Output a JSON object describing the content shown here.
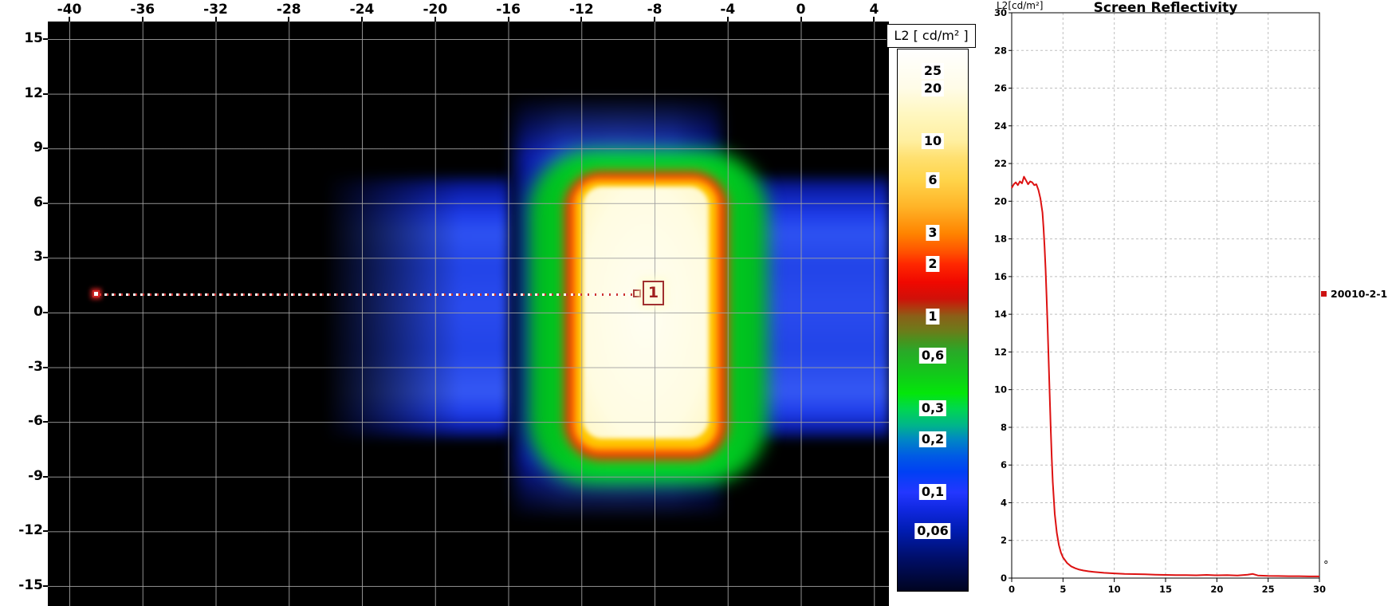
{
  "chart_data": [
    {
      "type": "heatmap",
      "name": "luminance-false-color-map",
      "x_ticks": [
        -40,
        -36,
        -32,
        -28,
        -24,
        -20,
        -16,
        -12,
        -8,
        -4,
        0,
        4
      ],
      "y_ticks": [
        15,
        12,
        9,
        6,
        3,
        0,
        -3,
        -6,
        -9,
        -12,
        -15
      ],
      "xlim": [
        -41.2,
        4.8
      ],
      "ylim": [
        -16,
        16
      ],
      "colorbar": {
        "title": "L2 [ cd/m² ]",
        "scale": "log",
        "tick_labels": [
          "25",
          "20",
          "10",
          "6",
          "3",
          "2",
          "1",
          "0,6",
          "0,3",
          "0,2",
          "0,1",
          "0,06"
        ],
        "tick_values": [
          25,
          20,
          10,
          6,
          3,
          2,
          1,
          0.6,
          0.3,
          0.2,
          0.1,
          0.06
        ]
      },
      "bright_region": {
        "x_range": [
          -13,
          -5.5
        ],
        "y_range": [
          -7.2,
          7.2
        ],
        "peak_value_cdm2": 25
      },
      "glow_bands": {
        "horizontal_band_y": [
          -6.8,
          7.2
        ],
        "vertical_band_x": [
          -15,
          -3
        ],
        "level_cdm2": 0.1
      },
      "background_level_cdm2": 0.06,
      "marker": {
        "label": "1",
        "x": -9,
        "y": 1,
        "line_start_x": -38.5
      }
    },
    {
      "type": "line",
      "title": "Screen Reflectivity",
      "y_axis_label": "L2[cd/m²]",
      "x_unit": "°",
      "legend": "20010-2-1",
      "color": "#dd1111",
      "xlim": [
        0,
        30
      ],
      "ylim": [
        0,
        30
      ],
      "x_ticks": [
        0,
        5,
        10,
        15,
        20,
        25,
        30
      ],
      "y_tick_step": 2,
      "grid": "dashed",
      "x": [
        0,
        0.2,
        0.4,
        0.6,
        0.8,
        1.0,
        1.2,
        1.4,
        1.6,
        1.8,
        2.0,
        2.2,
        2.4,
        2.6,
        2.8,
        3.0,
        3.1,
        3.2,
        3.3,
        3.4,
        3.5,
        3.6,
        3.7,
        3.8,
        3.9,
        4.0,
        4.2,
        4.4,
        4.6,
        4.8,
        5.0,
        5.4,
        5.8,
        6.2,
        6.6,
        7.0,
        7.5,
        8.0,
        9.0,
        10,
        11,
        12,
        13,
        14,
        15,
        16,
        17,
        18,
        19,
        20,
        21,
        22,
        23,
        23.5,
        24,
        25,
        26,
        27,
        28,
        29,
        30
      ],
      "y": [
        20.7,
        20.9,
        21.0,
        20.85,
        21.05,
        20.95,
        21.3,
        21.1,
        20.9,
        21.05,
        21.0,
        20.85,
        20.9,
        20.6,
        20.15,
        19.4,
        18.6,
        17.6,
        16.4,
        15.0,
        13.4,
        11.6,
        9.8,
        8.0,
        6.4,
        5.1,
        3.4,
        2.4,
        1.75,
        1.35,
        1.1,
        0.8,
        0.62,
        0.52,
        0.45,
        0.4,
        0.36,
        0.33,
        0.28,
        0.25,
        0.22,
        0.21,
        0.2,
        0.18,
        0.17,
        0.16,
        0.16,
        0.15,
        0.17,
        0.15,
        0.16,
        0.14,
        0.18,
        0.22,
        0.14,
        0.12,
        0.11,
        0.1,
        0.1,
        0.09,
        0.09
      ]
    }
  ]
}
